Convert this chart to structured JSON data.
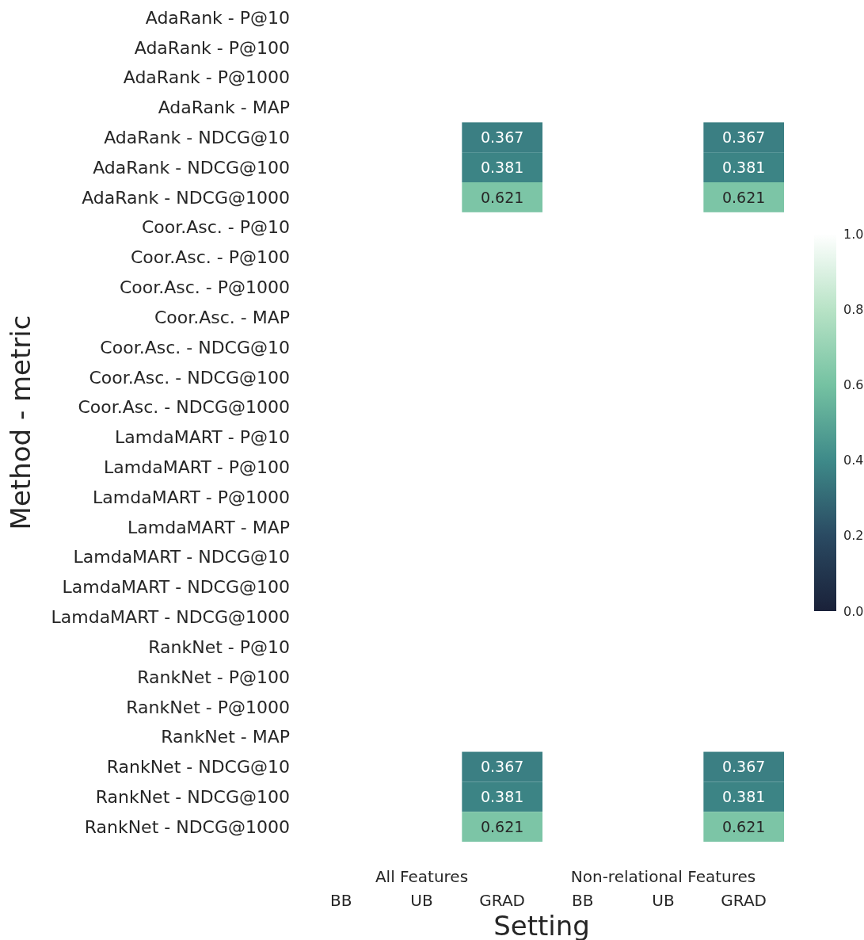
{
  "chart_data": {
    "type": "heatmap",
    "xlabel": "Setting",
    "ylabel": "Method - metric",
    "categories": [
      "BB",
      "UB",
      "GRAD",
      "BB",
      "UB",
      "GRAD"
    ],
    "annotations": [
      "All Features",
      "Non-relational Features"
    ],
    "y_categories": [
      "AdaRank - P@10",
      "AdaRank - P@100",
      "AdaRank - P@1000",
      "AdaRank - MAP",
      "AdaRank - NDCG@10",
      "AdaRank - NDCG@100",
      "AdaRank - NDCG@1000",
      "Coor.Asc. - P@10",
      "Coor.Asc. - P@100",
      "Coor.Asc. - P@1000",
      "Coor.Asc. - MAP",
      "Coor.Asc. - NDCG@10",
      "Coor.Asc. - NDCG@100",
      "Coor.Asc. - NDCG@1000",
      "LamdaMART - P@10",
      "LamdaMART - P@100",
      "LamdaMART - P@1000",
      "LamdaMART - MAP",
      "LamdaMART - NDCG@10",
      "LamdaMART - NDCG@100",
      "LamdaMART - NDCG@1000",
      "RankNet - P@10",
      "RankNet - P@100",
      "RankNet - P@1000",
      "RankNet - MAP",
      "RankNet - NDCG@10",
      "RankNet - NDCG@100",
      "RankNet - NDCG@1000"
    ],
    "cells": [
      [
        null,
        null,
        null,
        null,
        null,
        null
      ],
      [
        null,
        null,
        null,
        null,
        null,
        null
      ],
      [
        null,
        null,
        null,
        null,
        null,
        null
      ],
      [
        null,
        null,
        null,
        null,
        null,
        null
      ],
      [
        null,
        null,
        0.367,
        null,
        null,
        0.367
      ],
      [
        null,
        null,
        0.381,
        null,
        null,
        0.381
      ],
      [
        null,
        null,
        0.621,
        null,
        null,
        0.621
      ],
      [
        null,
        null,
        null,
        null,
        null,
        null
      ],
      [
        null,
        null,
        null,
        null,
        null,
        null
      ],
      [
        null,
        null,
        null,
        null,
        null,
        null
      ],
      [
        null,
        null,
        null,
        null,
        null,
        null
      ],
      [
        null,
        null,
        null,
        null,
        null,
        null
      ],
      [
        null,
        null,
        null,
        null,
        null,
        null
      ],
      [
        null,
        null,
        null,
        null,
        null,
        null
      ],
      [
        null,
        null,
        null,
        null,
        null,
        null
      ],
      [
        null,
        null,
        null,
        null,
        null,
        null
      ],
      [
        null,
        null,
        null,
        null,
        null,
        null
      ],
      [
        null,
        null,
        null,
        null,
        null,
        null
      ],
      [
        null,
        null,
        null,
        null,
        null,
        null
      ],
      [
        null,
        null,
        null,
        null,
        null,
        null
      ],
      [
        null,
        null,
        null,
        null,
        null,
        null
      ],
      [
        null,
        null,
        null,
        null,
        null,
        null
      ],
      [
        null,
        null,
        null,
        null,
        null,
        null
      ],
      [
        null,
        null,
        null,
        null,
        null,
        null
      ],
      [
        null,
        null,
        null,
        null,
        null,
        null
      ],
      [
        null,
        null,
        0.367,
        null,
        null,
        0.367
      ],
      [
        null,
        null,
        0.381,
        null,
        null,
        0.381
      ],
      [
        null,
        null,
        0.621,
        null,
        null,
        0.621
      ]
    ],
    "data_labels": true,
    "clim": [
      0,
      1
    ],
    "cticks": [
      {
        "value": 0,
        "label": "0.0"
      },
      {
        "value": 0.2,
        "label": "0.2"
      },
      {
        "value": 0.4,
        "label": "0.4"
      },
      {
        "value": 0.6,
        "label": "0.6"
      },
      {
        "value": 0.8,
        "label": "0.8"
      },
      {
        "value": 1,
        "label": "1.0"
      }
    ]
  }
}
